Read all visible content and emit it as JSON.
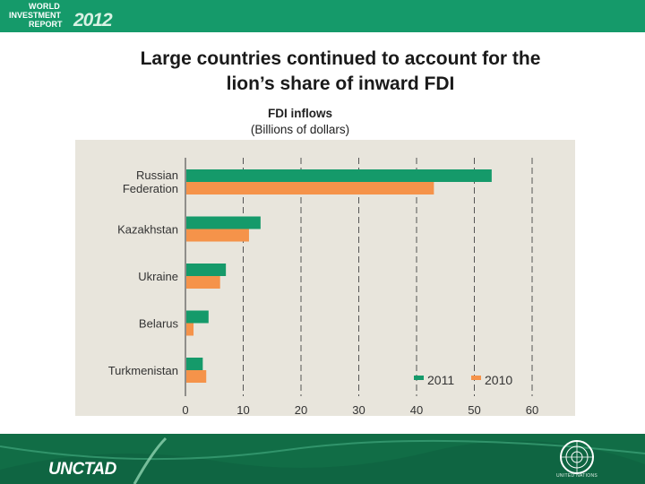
{
  "header": {
    "logo_line1": "WORLD",
    "logo_line2": "INVESTMENT",
    "logo_line3": "REPORT",
    "logo_year": "2012",
    "brand_color": "#159a6a"
  },
  "slide": {
    "title": "Large countries continued to account for the\nlion’s share of inward FDI"
  },
  "chart_data": {
    "type": "bar",
    "orientation": "horizontal",
    "title": "FDI inflows",
    "subtitle": "(Billions of dollars)",
    "categories": [
      "Russian Federation",
      "Kazakhstan",
      "Ukraine",
      "Belarus",
      "Turkmenistan"
    ],
    "series": [
      {
        "name": "2011",
        "color": "#159a6a",
        "values": [
          53,
          13,
          7,
          4,
          3
        ]
      },
      {
        "name": "2010",
        "color": "#f5934a",
        "values": [
          43,
          11,
          6,
          1.4,
          3.6
        ]
      }
    ],
    "xlim": [
      0,
      60
    ],
    "xticks": [
      0,
      10,
      20,
      30,
      40,
      50,
      60
    ],
    "grid": "vertical dashed",
    "legend": "bottom-right"
  },
  "footer": {
    "org": "UNCTAD",
    "un_label": "UNITED NATIONS",
    "color": "#116d46"
  }
}
